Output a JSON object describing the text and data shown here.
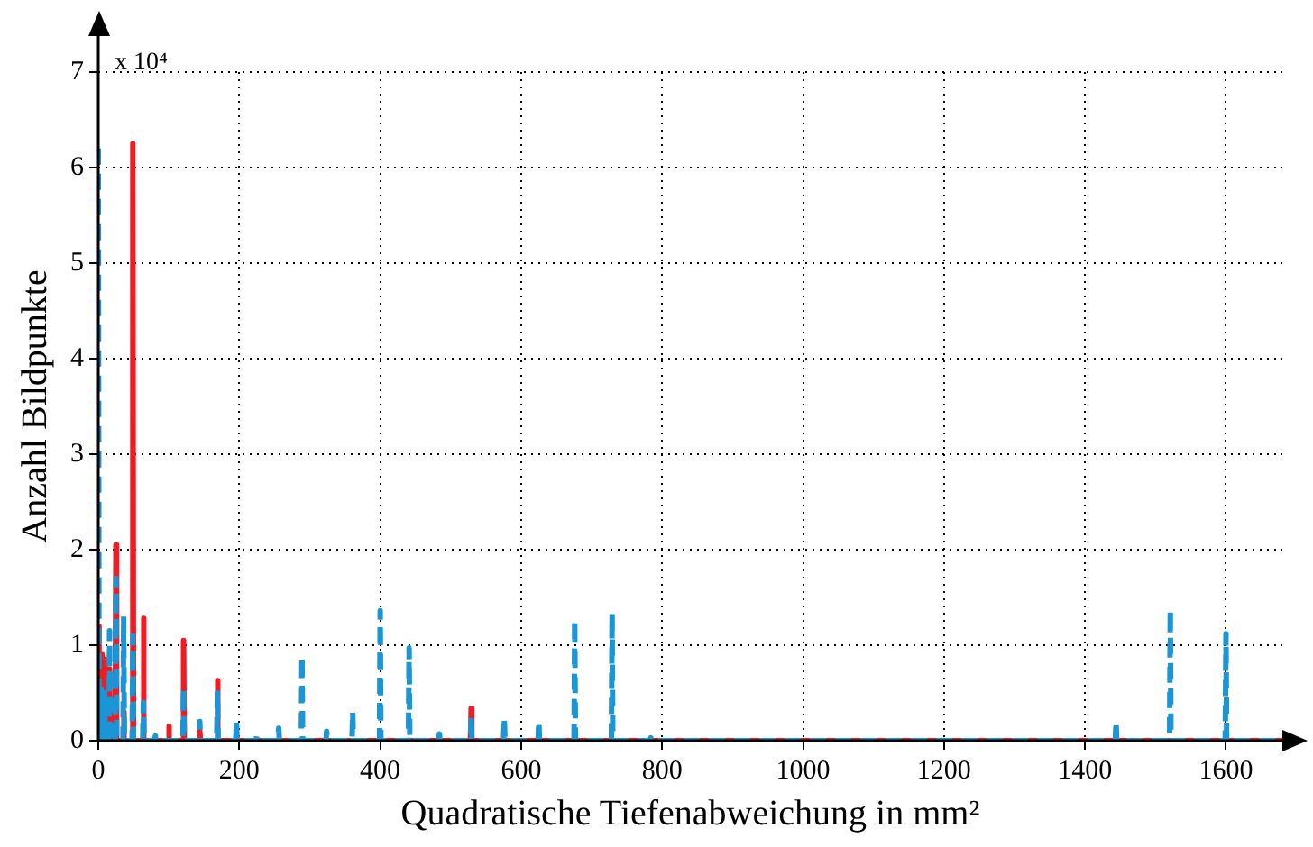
{
  "chart_data": {
    "type": "line",
    "xlabel": "Quadratische Tiefenabweichung in mm²",
    "ylabel": "Anzahl Bildpunkte",
    "annotations": [
      "x 10⁴"
    ],
    "x": [
      0,
      1,
      2,
      3,
      4,
      5,
      6,
      7,
      8,
      9,
      10,
      15,
      16,
      17,
      24,
      25,
      26,
      35,
      36,
      37,
      48,
      49,
      50,
      63,
      64,
      65,
      80,
      81,
      82,
      99,
      100,
      101,
      120,
      121,
      122,
      143,
      144,
      145,
      168,
      169,
      170,
      195,
      196,
      197,
      224,
      225,
      226,
      255,
      256,
      257,
      288,
      289,
      290,
      323,
      324,
      325,
      360,
      361,
      362,
      399,
      400,
      401,
      440,
      441,
      442,
      483,
      484,
      485,
      528,
      529,
      530,
      575,
      576,
      577,
      624,
      625,
      626,
      675,
      676,
      677,
      728,
      729,
      730,
      783,
      784,
      785,
      1443,
      1444,
      1445,
      1520,
      1521,
      1522,
      1599,
      1600,
      1601,
      1680
    ],
    "series": [
      {
        "color": "#ee1c25",
        "line_style": "solid",
        "values": [
          1.2,
          0.8,
          0,
          0,
          0.9,
          0,
          0,
          0,
          0,
          0.85,
          0,
          0,
          0.75,
          0,
          0,
          2.05,
          0,
          0,
          0.3,
          0,
          0,
          6.25,
          0,
          0,
          1.28,
          0,
          0,
          0,
          0,
          0,
          0.15,
          0,
          0,
          1.05,
          0,
          0,
          0.1,
          0,
          0,
          0.63,
          0,
          0,
          0,
          0,
          0,
          0,
          0,
          0,
          0,
          0,
          0,
          0,
          0,
          0,
          0,
          0,
          0,
          0,
          0,
          0,
          0,
          0,
          0,
          0,
          0,
          0,
          0,
          0,
          0,
          0.34,
          0,
          0,
          0,
          0,
          0,
          0,
          0,
          0,
          0,
          0,
          0,
          0,
          0,
          0,
          0,
          0,
          0,
          0,
          0,
          0,
          0,
          0,
          0,
          0,
          0,
          0
        ]
      },
      {
        "color": "#1a95d5",
        "line_style": "dashed",
        "values": [
          6.2,
          0.4,
          0,
          0,
          0.6,
          0,
          0,
          0,
          0,
          0.5,
          0,
          0,
          1.15,
          0,
          0,
          1.7,
          0,
          0,
          1.3,
          0,
          0,
          1.1,
          0,
          0,
          0.4,
          0,
          0,
          0.05,
          0,
          0,
          0,
          0,
          0,
          0.55,
          0,
          0,
          0.2,
          0,
          0,
          0.5,
          0,
          0,
          0.2,
          0,
          0,
          0.05,
          0,
          0,
          0.13,
          0,
          0,
          0.88,
          0,
          0,
          0.1,
          0,
          0,
          0.3,
          0,
          0,
          1.36,
          0,
          0,
          0.97,
          0,
          0,
          0.07,
          0,
          0,
          0.26,
          0,
          0,
          0.24,
          0,
          0,
          0.2,
          0,
          0,
          1.26,
          0,
          0,
          1.33,
          0,
          0,
          0.03,
          0,
          0,
          0.2,
          0,
          0,
          1.37,
          0,
          0,
          1.12,
          0,
          0
        ]
      }
    ],
    "xlim": [
      0,
      1680
    ],
    "xticks": [
      0,
      200,
      400,
      600,
      800,
      1000,
      1200,
      1400,
      1600
    ],
    "ylim": [
      0,
      7
    ],
    "yticks": [
      0,
      1,
      2,
      3,
      4,
      5,
      6,
      7
    ],
    "grid": true,
    "legend": false,
    "marker": "none"
  }
}
